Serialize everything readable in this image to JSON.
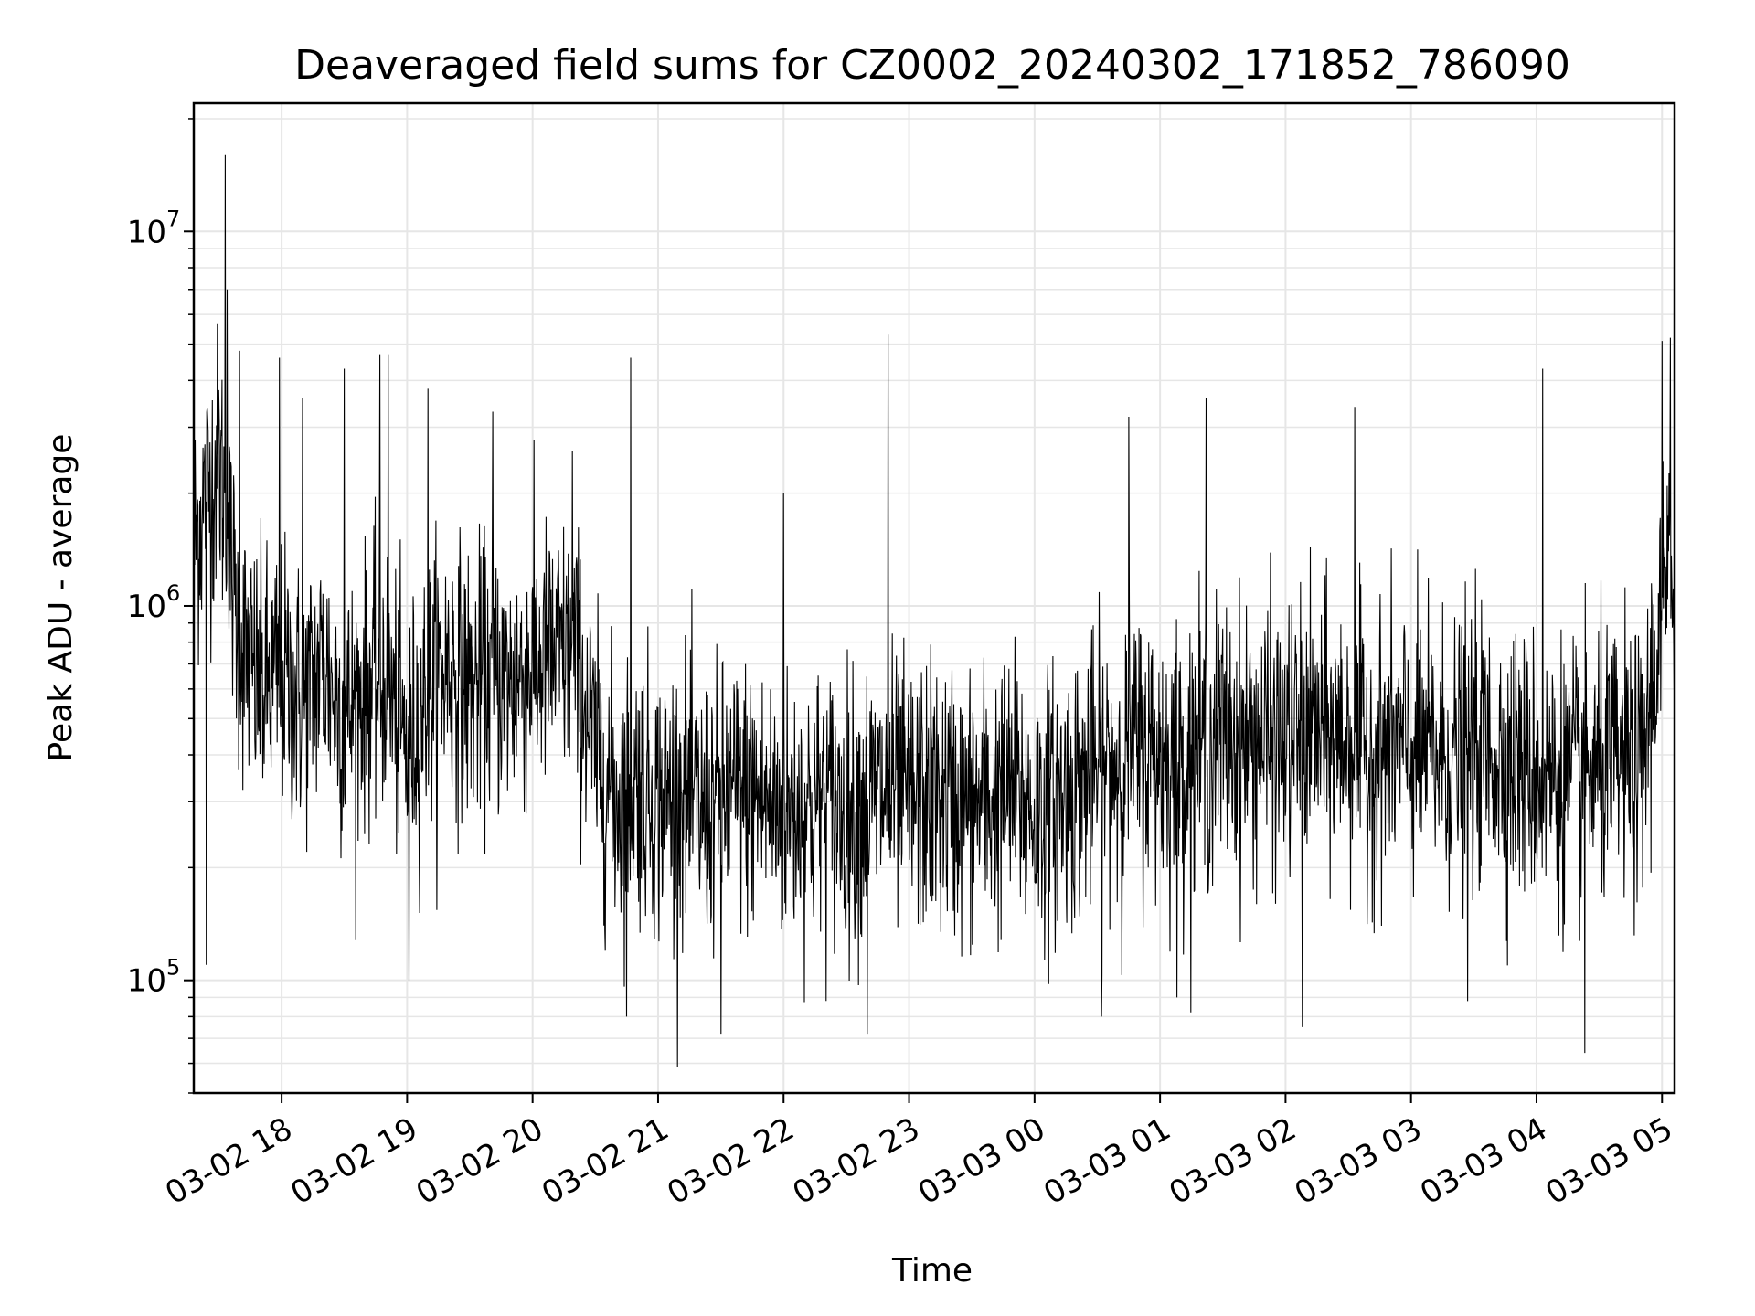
{
  "chart_data": {
    "type": "line",
    "title": "Deaveraged field sums for CZ0002_20240302_171852_786090",
    "xlabel": "Time",
    "ylabel": "Peak ADU - average",
    "yscale": "log",
    "ylim": [
      50000,
      22000000
    ],
    "xlim": [
      "2024-03-02 17:18",
      "2024-03-03 05:06"
    ],
    "grid": true,
    "line_color": "#000000",
    "grid_color": "#e6e6e6",
    "x_ticks": [
      "03-02 18",
      "03-02 19",
      "03-02 20",
      "03-02 21",
      "03-02 22",
      "03-02 23",
      "03-03 00",
      "03-03 01",
      "03-03 02",
      "03-03 03",
      "03-03 04",
      "03-03 05"
    ],
    "y_ticks": [
      {
        "base": "10",
        "exp": "5"
      },
      {
        "base": "10",
        "exp": "6"
      },
      {
        "base": "10",
        "exp": "7"
      }
    ],
    "series": [
      {
        "x": [
          "2024-03-02 17:18",
          "2024-03-02 17:30",
          "2024-03-02 17:40",
          "2024-03-02 17:50",
          "2024-03-02 18:00",
          "2024-03-02 18:10",
          "2024-03-02 18:20",
          "2024-03-02 18:30",
          "2024-03-02 18:40",
          "2024-03-02 18:50",
          "2024-03-02 19:00",
          "2024-03-02 19:10",
          "2024-03-02 19:20",
          "2024-03-02 19:30",
          "2024-03-02 19:40",
          "2024-03-02 19:50",
          "2024-03-02 20:00",
          "2024-03-02 20:10",
          "2024-03-02 20:20",
          "2024-03-02 20:30",
          "2024-03-02 20:40",
          "2024-03-02 20:50",
          "2024-03-02 21:00",
          "2024-03-02 21:10",
          "2024-03-02 21:20",
          "2024-03-02 21:30",
          "2024-03-02 21:40",
          "2024-03-02 21:50",
          "2024-03-02 22:00",
          "2024-03-02 22:10",
          "2024-03-02 22:20",
          "2024-03-02 22:30",
          "2024-03-02 22:40",
          "2024-03-02 22:50",
          "2024-03-02 23:00",
          "2024-03-02 23:10",
          "2024-03-02 23:20",
          "2024-03-02 23:30",
          "2024-03-02 23:40",
          "2024-03-02 23:50",
          "2024-03-03 00:00",
          "2024-03-03 00:10",
          "2024-03-03 00:20",
          "2024-03-03 00:30",
          "2024-03-03 00:40",
          "2024-03-03 00:50",
          "2024-03-03 01:00",
          "2024-03-03 01:10",
          "2024-03-03 01:20",
          "2024-03-03 01:30",
          "2024-03-03 01:40",
          "2024-03-03 01:50",
          "2024-03-03 02:00",
          "2024-03-03 02:10",
          "2024-03-03 02:20",
          "2024-03-03 02:30",
          "2024-03-03 02:40",
          "2024-03-03 02:50",
          "2024-03-03 03:00",
          "2024-03-03 03:10",
          "2024-03-03 03:20",
          "2024-03-03 03:30",
          "2024-03-03 03:40",
          "2024-03-03 03:50",
          "2024-03-03 04:00",
          "2024-03-03 04:10",
          "2024-03-03 04:20",
          "2024-03-03 04:30",
          "2024-03-03 04:40",
          "2024-03-03 04:50",
          "2024-03-03 05:00",
          "2024-03-03 05:06"
        ],
        "values": [
          1500000,
          2500000,
          800000,
          600000,
          650000,
          550000,
          700000,
          500000,
          600000,
          650000,
          400000,
          600000,
          700000,
          600000,
          650000,
          620000,
          700000,
          720000,
          750000,
          400000,
          300000,
          350000,
          300000,
          320000,
          280000,
          300000,
          320000,
          300000,
          280000,
          290000,
          300000,
          280000,
          300000,
          320000,
          300000,
          310000,
          300000,
          290000,
          300000,
          320000,
          280000,
          300000,
          330000,
          360000,
          380000,
          420000,
          400000,
          380000,
          420000,
          450000,
          430000,
          440000,
          430000,
          460000,
          450000,
          440000,
          400000,
          420000,
          410000,
          400000,
          390000,
          420000,
          400000,
          380000,
          360000,
          350000,
          340000,
          360000,
          380000,
          350000,
          1000000,
          1200000
        ],
        "spikes": [
          {
            "x": "2024-03-02 17:33",
            "value": 16000000
          },
          {
            "x": "2024-03-02 17:34",
            "value": 7000000
          },
          {
            "x": "2024-03-02 17:40",
            "value": 4800000
          },
          {
            "x": "2024-03-02 17:24",
            "value": 110000
          },
          {
            "x": "2024-03-02 17:59",
            "value": 4600000
          },
          {
            "x": "2024-03-02 18:10",
            "value": 3600000
          },
          {
            "x": "2024-03-02 18:30",
            "value": 4300000
          },
          {
            "x": "2024-03-02 18:47",
            "value": 4700000
          },
          {
            "x": "2024-03-02 18:51",
            "value": 4700000
          },
          {
            "x": "2024-03-02 19:01",
            "value": 100000
          },
          {
            "x": "2024-03-02 19:10",
            "value": 3800000
          },
          {
            "x": "2024-03-02 19:41",
            "value": 3300000
          },
          {
            "x": "2024-03-02 20:19",
            "value": 2600000
          },
          {
            "x": "2024-03-02 20:47",
            "value": 4600000
          },
          {
            "x": "2024-03-02 20:45",
            "value": 80000
          },
          {
            "x": "2024-03-02 21:30",
            "value": 72000
          },
          {
            "x": "2024-03-02 22:00",
            "value": 2000000
          },
          {
            "x": "2024-03-02 22:50",
            "value": 5300000
          },
          {
            "x": "2024-03-02 22:40",
            "value": 72000
          },
          {
            "x": "2024-03-03 00:32",
            "value": 80000
          },
          {
            "x": "2024-03-03 00:45",
            "value": 3200000
          },
          {
            "x": "2024-03-03 01:08",
            "value": 90000
          },
          {
            "x": "2024-03-03 01:22",
            "value": 3600000
          },
          {
            "x": "2024-03-03 02:08",
            "value": 75000
          },
          {
            "x": "2024-03-03 02:33",
            "value": 3400000
          },
          {
            "x": "2024-03-03 03:27",
            "value": 88000
          },
          {
            "x": "2024-03-03 04:03",
            "value": 4300000
          },
          {
            "x": "2024-03-03 04:23",
            "value": 64000
          },
          {
            "x": "2024-03-03 05:00",
            "value": 5100000
          },
          {
            "x": "2024-03-03 05:04",
            "value": 5200000
          }
        ]
      }
    ]
  }
}
